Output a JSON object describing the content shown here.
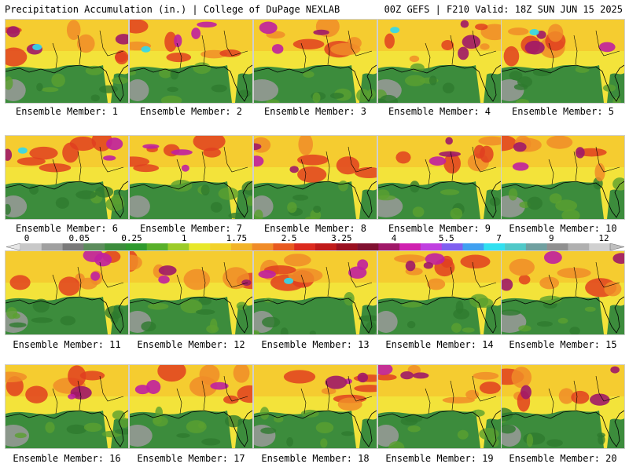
{
  "header": {
    "left_title": "Precipitation Accumulation (in.) | College of DuPage NEXLAB",
    "right_title": "00Z GEFS | F210 Valid: 18Z SUN JUN 15 2025"
  },
  "panels": [
    {
      "label": "Ensemble Member: 1"
    },
    {
      "label": "Ensemble Member: 2"
    },
    {
      "label": "Ensemble Member: 3"
    },
    {
      "label": "Ensemble Member: 4"
    },
    {
      "label": "Ensemble Member: 5"
    },
    {
      "label": "Ensemble Member: 6"
    },
    {
      "label": "Ensemble Member: 7"
    },
    {
      "label": "Ensemble Member: 8"
    },
    {
      "label": "Ensemble Member: 9"
    },
    {
      "label": "Ensemble Member: 10"
    },
    {
      "label": "Ensemble Member: 11"
    },
    {
      "label": "Ensemble Member: 12"
    },
    {
      "label": "Ensemble Member: 13"
    },
    {
      "label": "Ensemble Member: 14"
    },
    {
      "label": "Ensemble Member: 15"
    },
    {
      "label": "Ensemble Member: 16"
    },
    {
      "label": "Ensemble Member: 17"
    },
    {
      "label": "Ensemble Member: 18"
    },
    {
      "label": "Ensemble Member: 19"
    },
    {
      "label": "Ensemble Member: 20"
    }
  ],
  "colorbar": {
    "tick_labels": [
      "0",
      "0.05",
      "0.25",
      "1",
      "1.75",
      "2.5",
      "3.25",
      "4",
      "5.5",
      "7",
      "9",
      "12"
    ],
    "colors": [
      "#c8c8c8",
      "#a0a0a0",
      "#7a7a7a",
      "#5c8c5c",
      "#3c8c3c",
      "#2e9a2e",
      "#58b02a",
      "#9ccc28",
      "#e8e82a",
      "#f2d22a",
      "#f2b428",
      "#f08c28",
      "#e85a20",
      "#dc2a1e",
      "#c01a1a",
      "#9a1020",
      "#801030",
      "#a01868",
      "#d020b0",
      "#c040e0",
      "#8060f0",
      "#40a0f0",
      "#30e0f0",
      "#50c8c8",
      "#70a0a0",
      "#909090",
      "#b0b0b0",
      "#d0d0d0"
    ]
  }
}
